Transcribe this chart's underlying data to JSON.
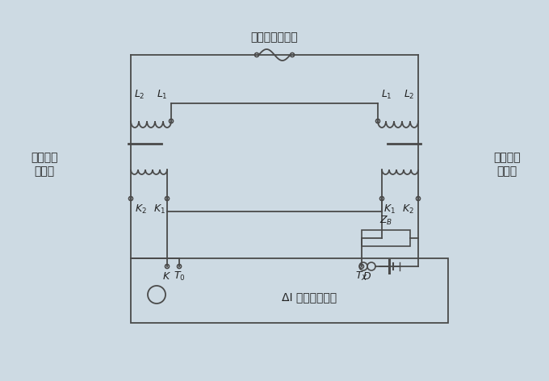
{
  "title": "接升流器输出端",
  "left_label_line1": "标准电流",
  "left_label_line2": "互感器",
  "right_label_line1": "被检电流",
  "right_label_line2": "互感器",
  "bottom_box_label": "ΔI 误差测量装置",
  "bg_color": "#cddae3",
  "line_color": "#4a4a4a",
  "font_color": "#222222",
  "lw": 1.3
}
